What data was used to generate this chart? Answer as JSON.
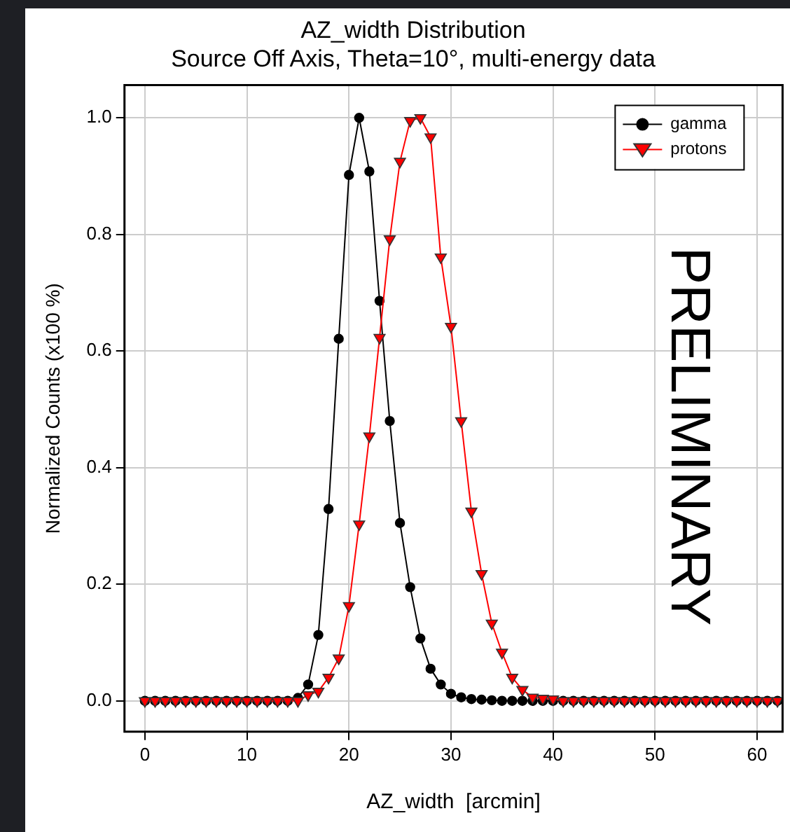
{
  "chart_data": {
    "type": "line",
    "title": "AZ_width Distribution",
    "subtitle": "Source Off Axis, Theta=10°, multi-energy data",
    "xlabel": "AZ_width  [arcmin]",
    "ylabel": "Normalized Counts (x100 %)",
    "x": [
      0,
      1,
      2,
      3,
      4,
      5,
      6,
      7,
      8,
      9,
      10,
      11,
      12,
      13,
      14,
      15,
      16,
      17,
      18,
      19,
      20,
      21,
      22,
      23,
      24,
      25,
      26,
      27,
      28,
      29,
      30,
      31,
      32,
      33,
      34,
      35,
      36,
      37,
      38,
      39,
      40,
      41,
      42,
      43,
      44,
      45,
      46,
      47,
      48,
      49,
      50,
      51,
      52,
      53,
      54,
      55,
      56,
      57,
      58,
      59,
      60,
      61,
      62
    ],
    "series": [
      {
        "name": "gamma",
        "color": "#000000",
        "marker": "circle",
        "values": [
          0,
          0,
          0,
          0,
          0,
          0,
          0,
          0,
          0,
          0,
          0,
          0,
          0,
          0,
          0,
          0.005,
          0.028,
          0.113,
          0.329,
          0.621,
          0.902,
          1.0,
          0.908,
          0.686,
          0.48,
          0.305,
          0.195,
          0.107,
          0.055,
          0.028,
          0.012,
          0.006,
          0.003,
          0.002,
          0.001,
          0,
          0,
          0,
          0,
          0,
          0,
          0,
          0,
          0,
          0,
          0,
          0,
          0,
          0,
          0,
          0,
          0,
          0,
          0,
          0,
          0,
          0,
          0,
          0,
          0,
          0,
          0,
          0
        ]
      },
      {
        "name": "protons",
        "color": "#ff0000",
        "marker": "triangle",
        "values": [
          0,
          0,
          0,
          0,
          0,
          0,
          0,
          0,
          0,
          0,
          0,
          0,
          0,
          0,
          0,
          0,
          0.01,
          0.016,
          0.04,
          0.073,
          0.163,
          0.303,
          0.454,
          0.623,
          0.792,
          0.925,
          0.995,
          1.0,
          0.967,
          0.761,
          0.642,
          0.48,
          0.325,
          0.218,
          0.133,
          0.083,
          0.04,
          0.019,
          0.006,
          0.004,
          0.003,
          0,
          0,
          0,
          0,
          0,
          0,
          0,
          0,
          0,
          0,
          0,
          0,
          0,
          0,
          0,
          0,
          0,
          0,
          0,
          0,
          0,
          0
        ]
      }
    ],
    "xlim": [
      -2,
      62.5
    ],
    "xticks": [
      0,
      10,
      20,
      30,
      40,
      50,
      60
    ],
    "ylim": [
      -0.053,
      1.056
    ],
    "yticks": [
      {
        "value": 0,
        "label": "0.0"
      },
      {
        "value": 0.2,
        "label": "0.2"
      },
      {
        "value": 0.4,
        "label": "0.4"
      },
      {
        "value": 0.6,
        "label": "0.6"
      },
      {
        "value": 0.8,
        "label": "0.8"
      },
      {
        "value": 1.0,
        "label": "1.0"
      }
    ],
    "grid": true,
    "legend": "top right",
    "annotations": [
      "PRELIMINARY"
    ]
  }
}
